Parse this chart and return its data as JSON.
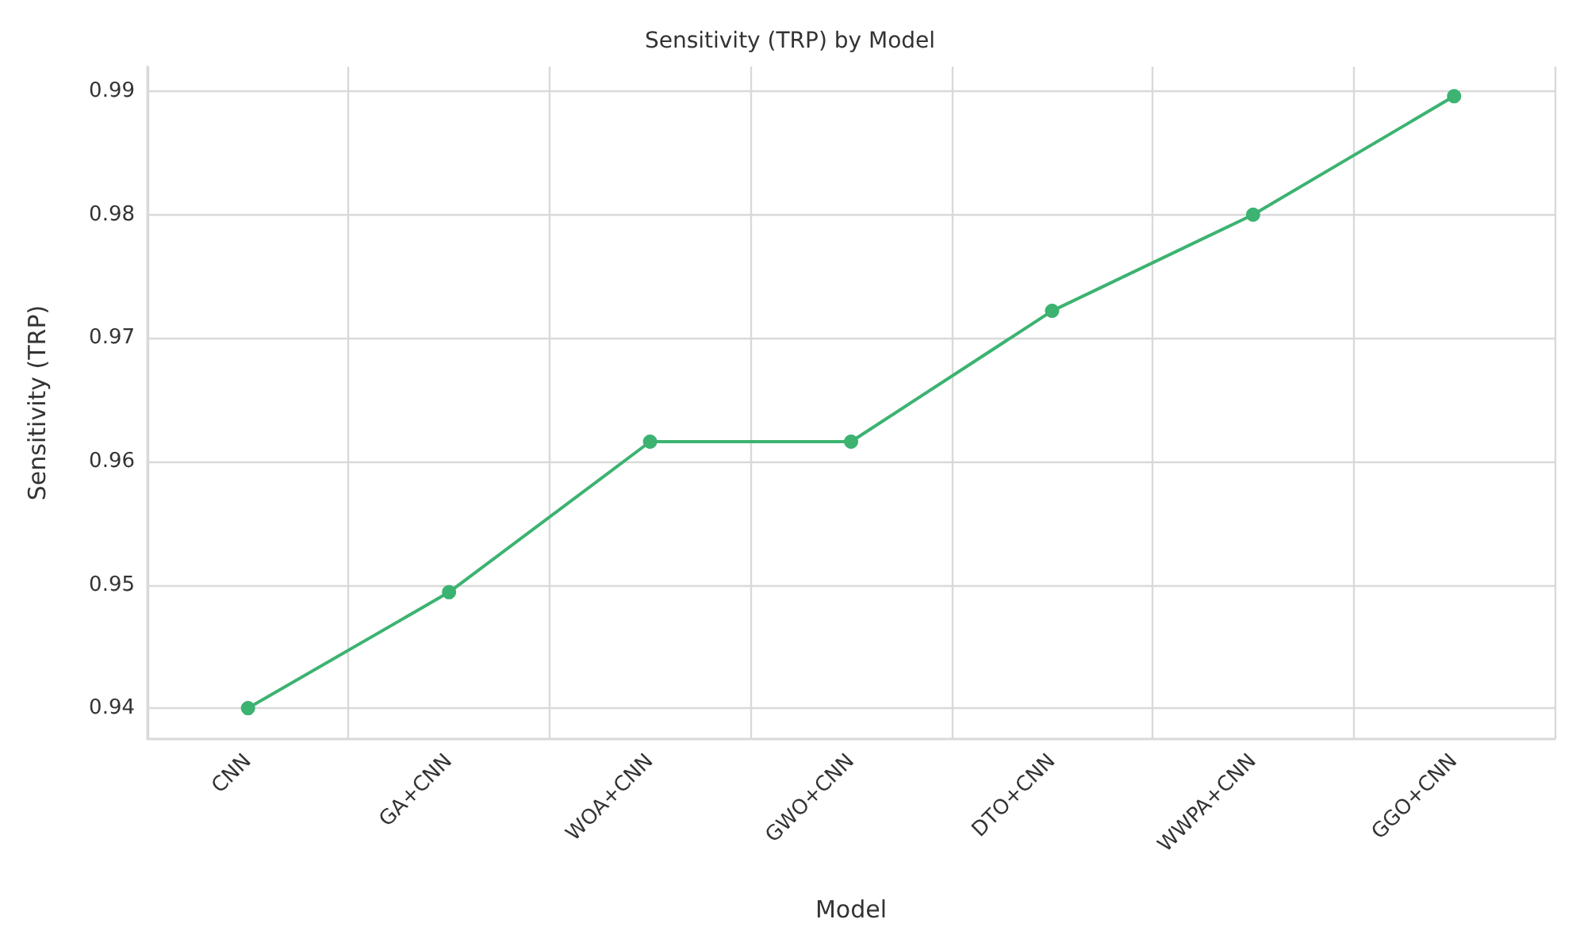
{
  "chart_data": {
    "type": "line",
    "title": "Sensitivity (TRP) by Model",
    "xlabel": "Model",
    "ylabel": "Sensitivity (TRP)",
    "categories": [
      "CNN",
      "GA+CNN",
      "WOA+CNN",
      "GWO+CNN",
      "DTO+CNN",
      "WWPA+CNN",
      "GGO+CNN"
    ],
    "series": [
      {
        "color": "#3cb371",
        "values": [
          0.94,
          0.9494,
          0.9616,
          0.9616,
          0.9722,
          0.98,
          0.9896
        ]
      }
    ],
    "ylim": [
      0.9375,
      0.992
    ],
    "yticks": [
      0.94,
      0.95,
      0.96,
      0.97,
      0.98,
      0.99
    ],
    "grid": true,
    "marker": "circle",
    "line_style": "solid"
  }
}
